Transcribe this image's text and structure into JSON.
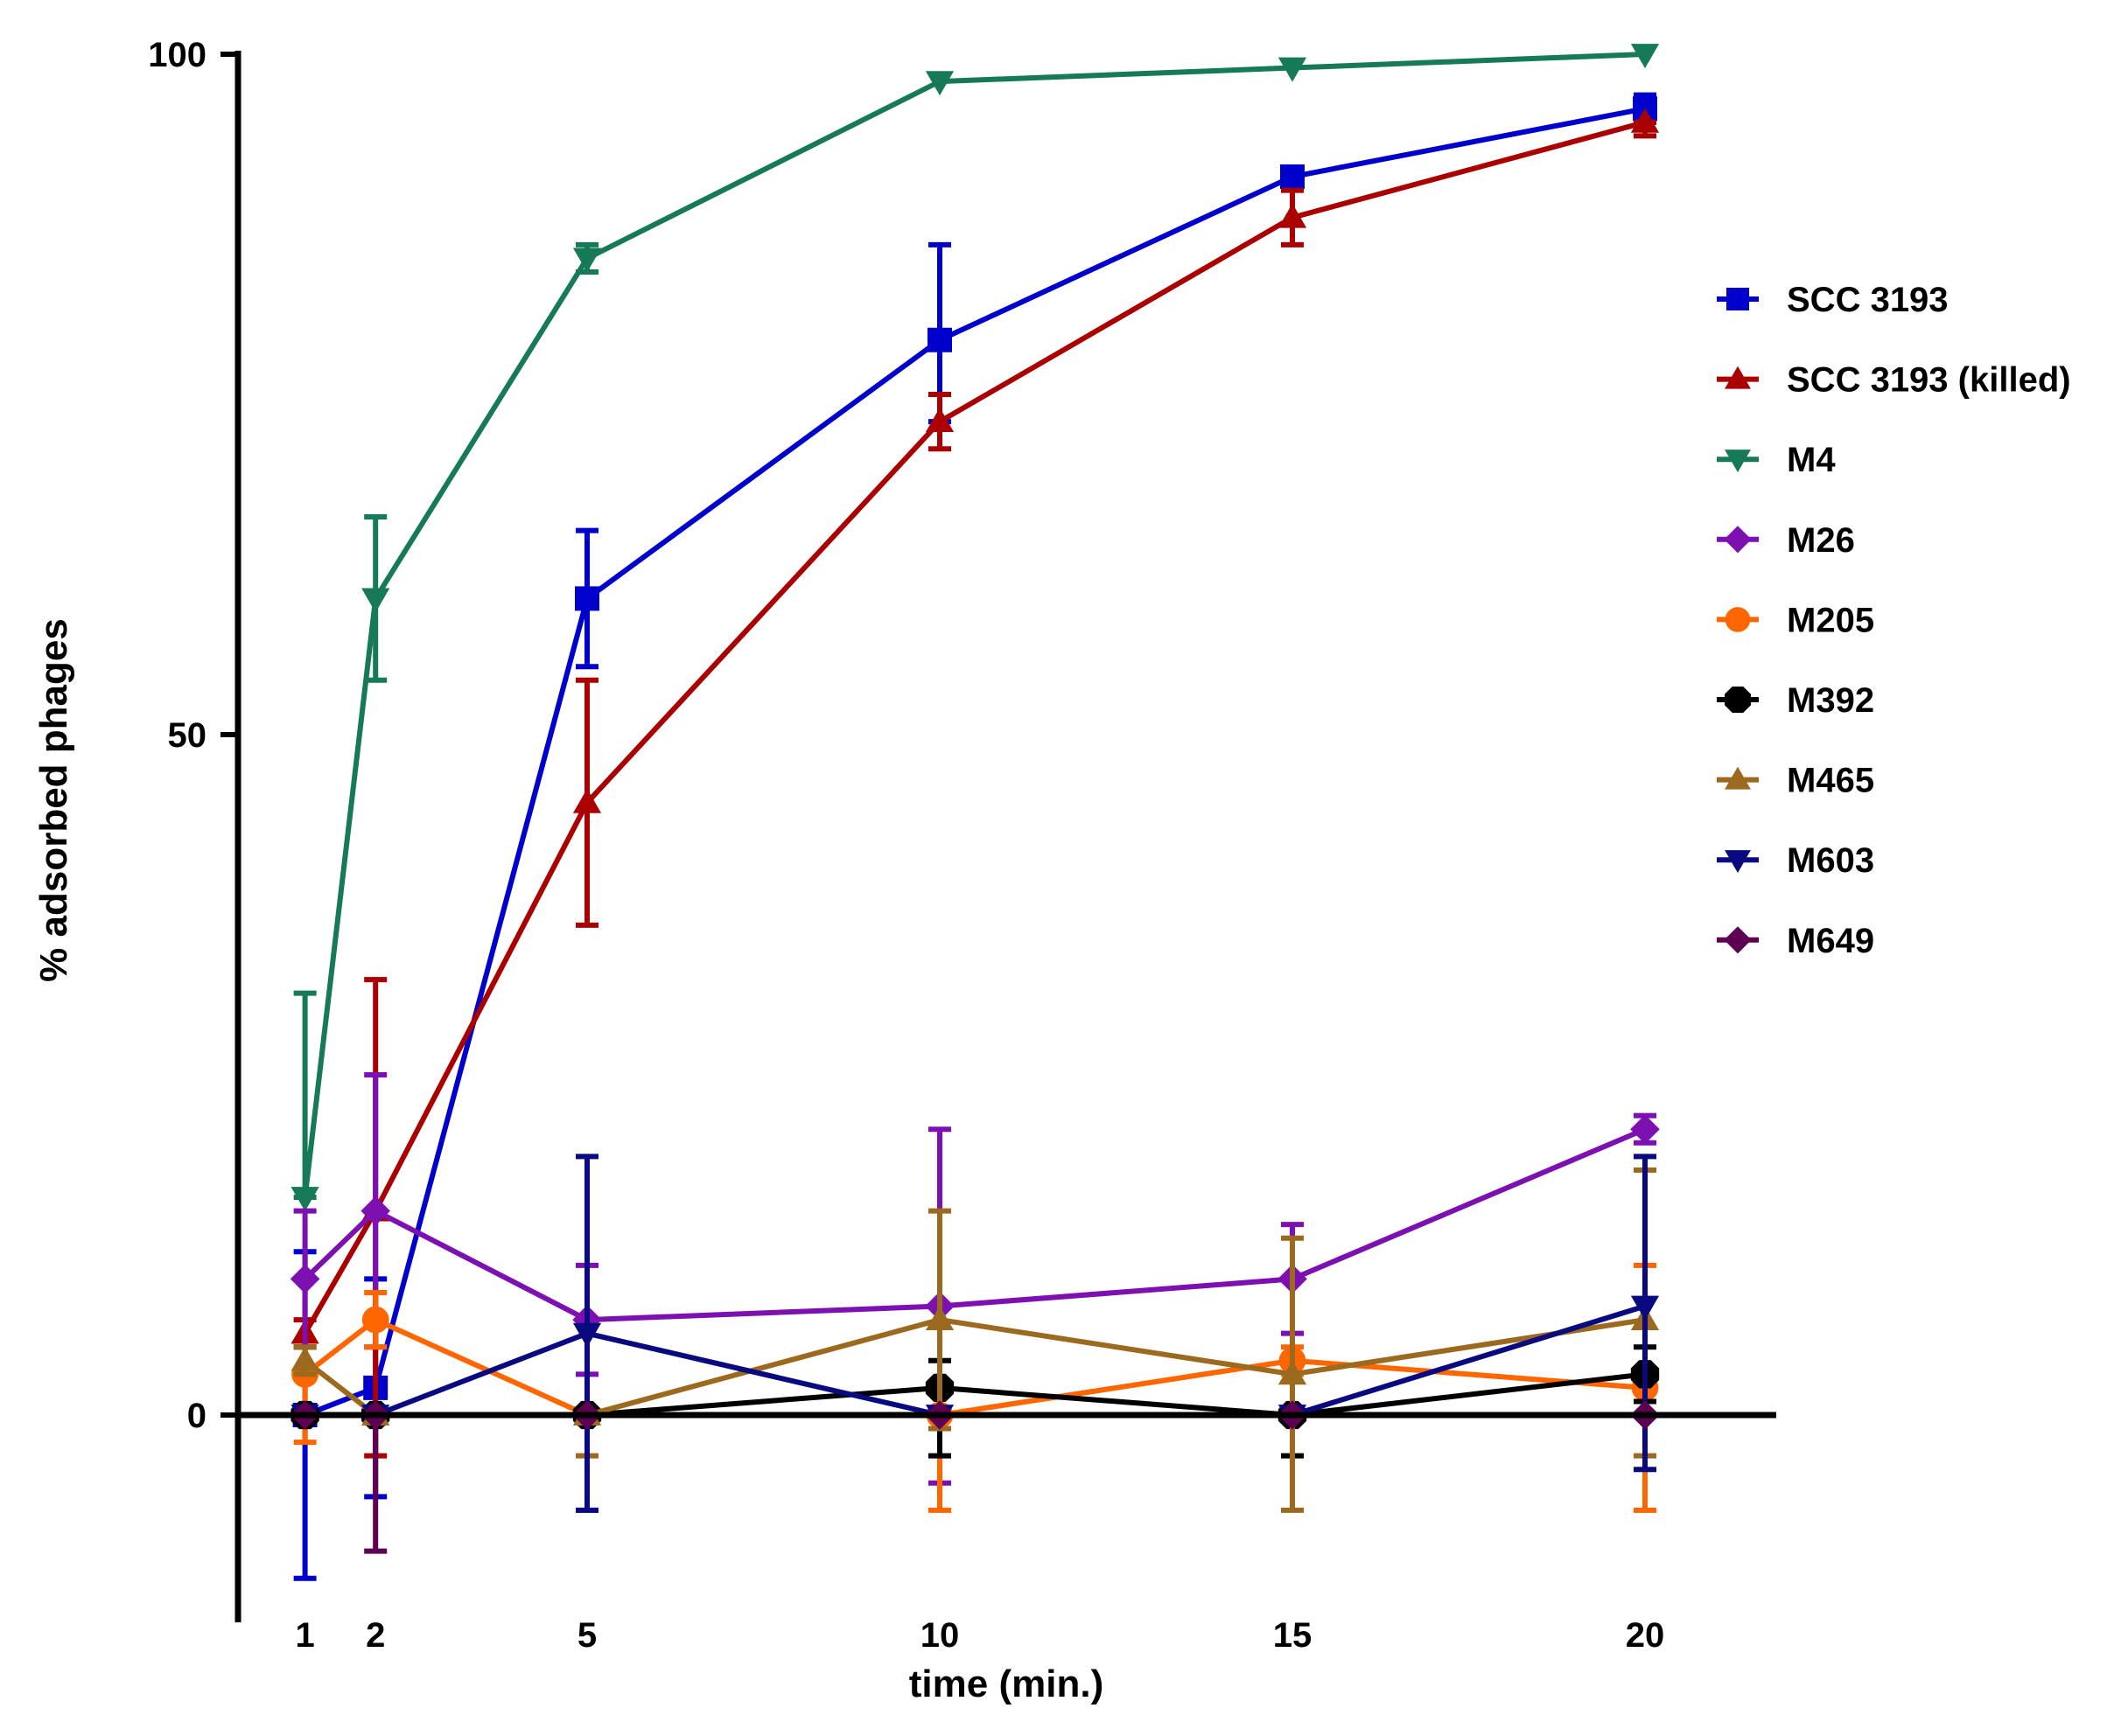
{
  "chart_data": {
    "type": "line",
    "title": "",
    "xlabel": "time (min.)",
    "ylabel": "% adsorbed phages",
    "x": [
      1,
      2,
      5,
      10,
      15,
      20
    ],
    "x_tick_labels": [
      "1",
      "2",
      "5",
      "10",
      "15",
      "20"
    ],
    "y_ticks": [
      0,
      50,
      100
    ],
    "y_tick_labels": [
      "0",
      "50",
      "100"
    ],
    "xlim": [
      0,
      21.5
    ],
    "ylim": [
      -15,
      100
    ],
    "legend_position": "right",
    "series": [
      {
        "name": "SCC 3193",
        "color": "#0000cc",
        "marker": "square",
        "values": [
          0,
          2,
          60,
          79,
          91,
          96
        ],
        "err_high": [
          12,
          10,
          65,
          86,
          91,
          97
        ],
        "err_low": [
          -12,
          -6,
          55,
          73,
          91,
          95
        ]
      },
      {
        "name": "SCC 3193 (killed)",
        "color": "#aa0000",
        "marker": "triangle-up",
        "values": [
          6,
          15,
          45,
          73,
          88,
          95
        ],
        "err_high": [
          7,
          32,
          54,
          75,
          90,
          95
        ],
        "err_low": [
          5,
          -3,
          36,
          71,
          86,
          94
        ]
      },
      {
        "name": "M4",
        "color": "#157a55",
        "marker": "triangle-down",
        "values": [
          16,
          60,
          85,
          98,
          99,
          100
        ],
        "err_high": [
          31,
          66,
          86,
          98,
          99,
          100
        ],
        "err_low": [
          16,
          54,
          84,
          98,
          99,
          100
        ]
      },
      {
        "name": "M26",
        "color": "#7d10b0",
        "marker": "diamond",
        "values": [
          10,
          15,
          7,
          8,
          10,
          21
        ],
        "err_high": [
          15,
          25,
          11,
          21,
          14,
          22
        ],
        "err_low": [
          5,
          5,
          3,
          -5,
          6,
          20
        ]
      },
      {
        "name": "M205",
        "color": "#ff6600",
        "marker": "circle",
        "values": [
          3,
          7,
          0,
          0,
          4,
          2
        ],
        "err_high": [
          3,
          9,
          0,
          0,
          5,
          11
        ],
        "err_low": [
          -2,
          5,
          -7,
          -7,
          3,
          -7
        ]
      },
      {
        "name": "M392",
        "color": "#000000",
        "marker": "octagon",
        "values": [
          0,
          0,
          0,
          2,
          0,
          3
        ],
        "err_high": [
          0,
          0,
          0,
          4,
          0,
          5
        ],
        "err_low": [
          0,
          0,
          0,
          -3,
          -3,
          1
        ]
      },
      {
        "name": "M465",
        "color": "#9b6a1e",
        "marker": "triangle-up",
        "values": [
          4,
          0,
          0,
          7,
          3,
          7
        ],
        "err_high": [
          5,
          0,
          0,
          15,
          13,
          18
        ],
        "err_low": [
          3,
          0,
          -3,
          -1,
          -7,
          -3
        ]
      },
      {
        "name": "M603",
        "color": "#0a0a80",
        "marker": "triangle-down",
        "values": [
          0,
          0,
          6,
          0,
          0,
          8
        ],
        "err_high": [
          0,
          0,
          19,
          0,
          0,
          19
        ],
        "err_low": [
          0,
          0,
          -7,
          0,
          0,
          -4
        ]
      },
      {
        "name": "M649",
        "color": "#5e0052",
        "marker": "diamond",
        "values": [
          0,
          0,
          0,
          0,
          0,
          0
        ],
        "err_high": [
          0,
          0,
          0,
          0,
          0,
          0
        ],
        "err_low": [
          0,
          -10,
          0,
          0,
          0,
          0
        ]
      }
    ]
  }
}
